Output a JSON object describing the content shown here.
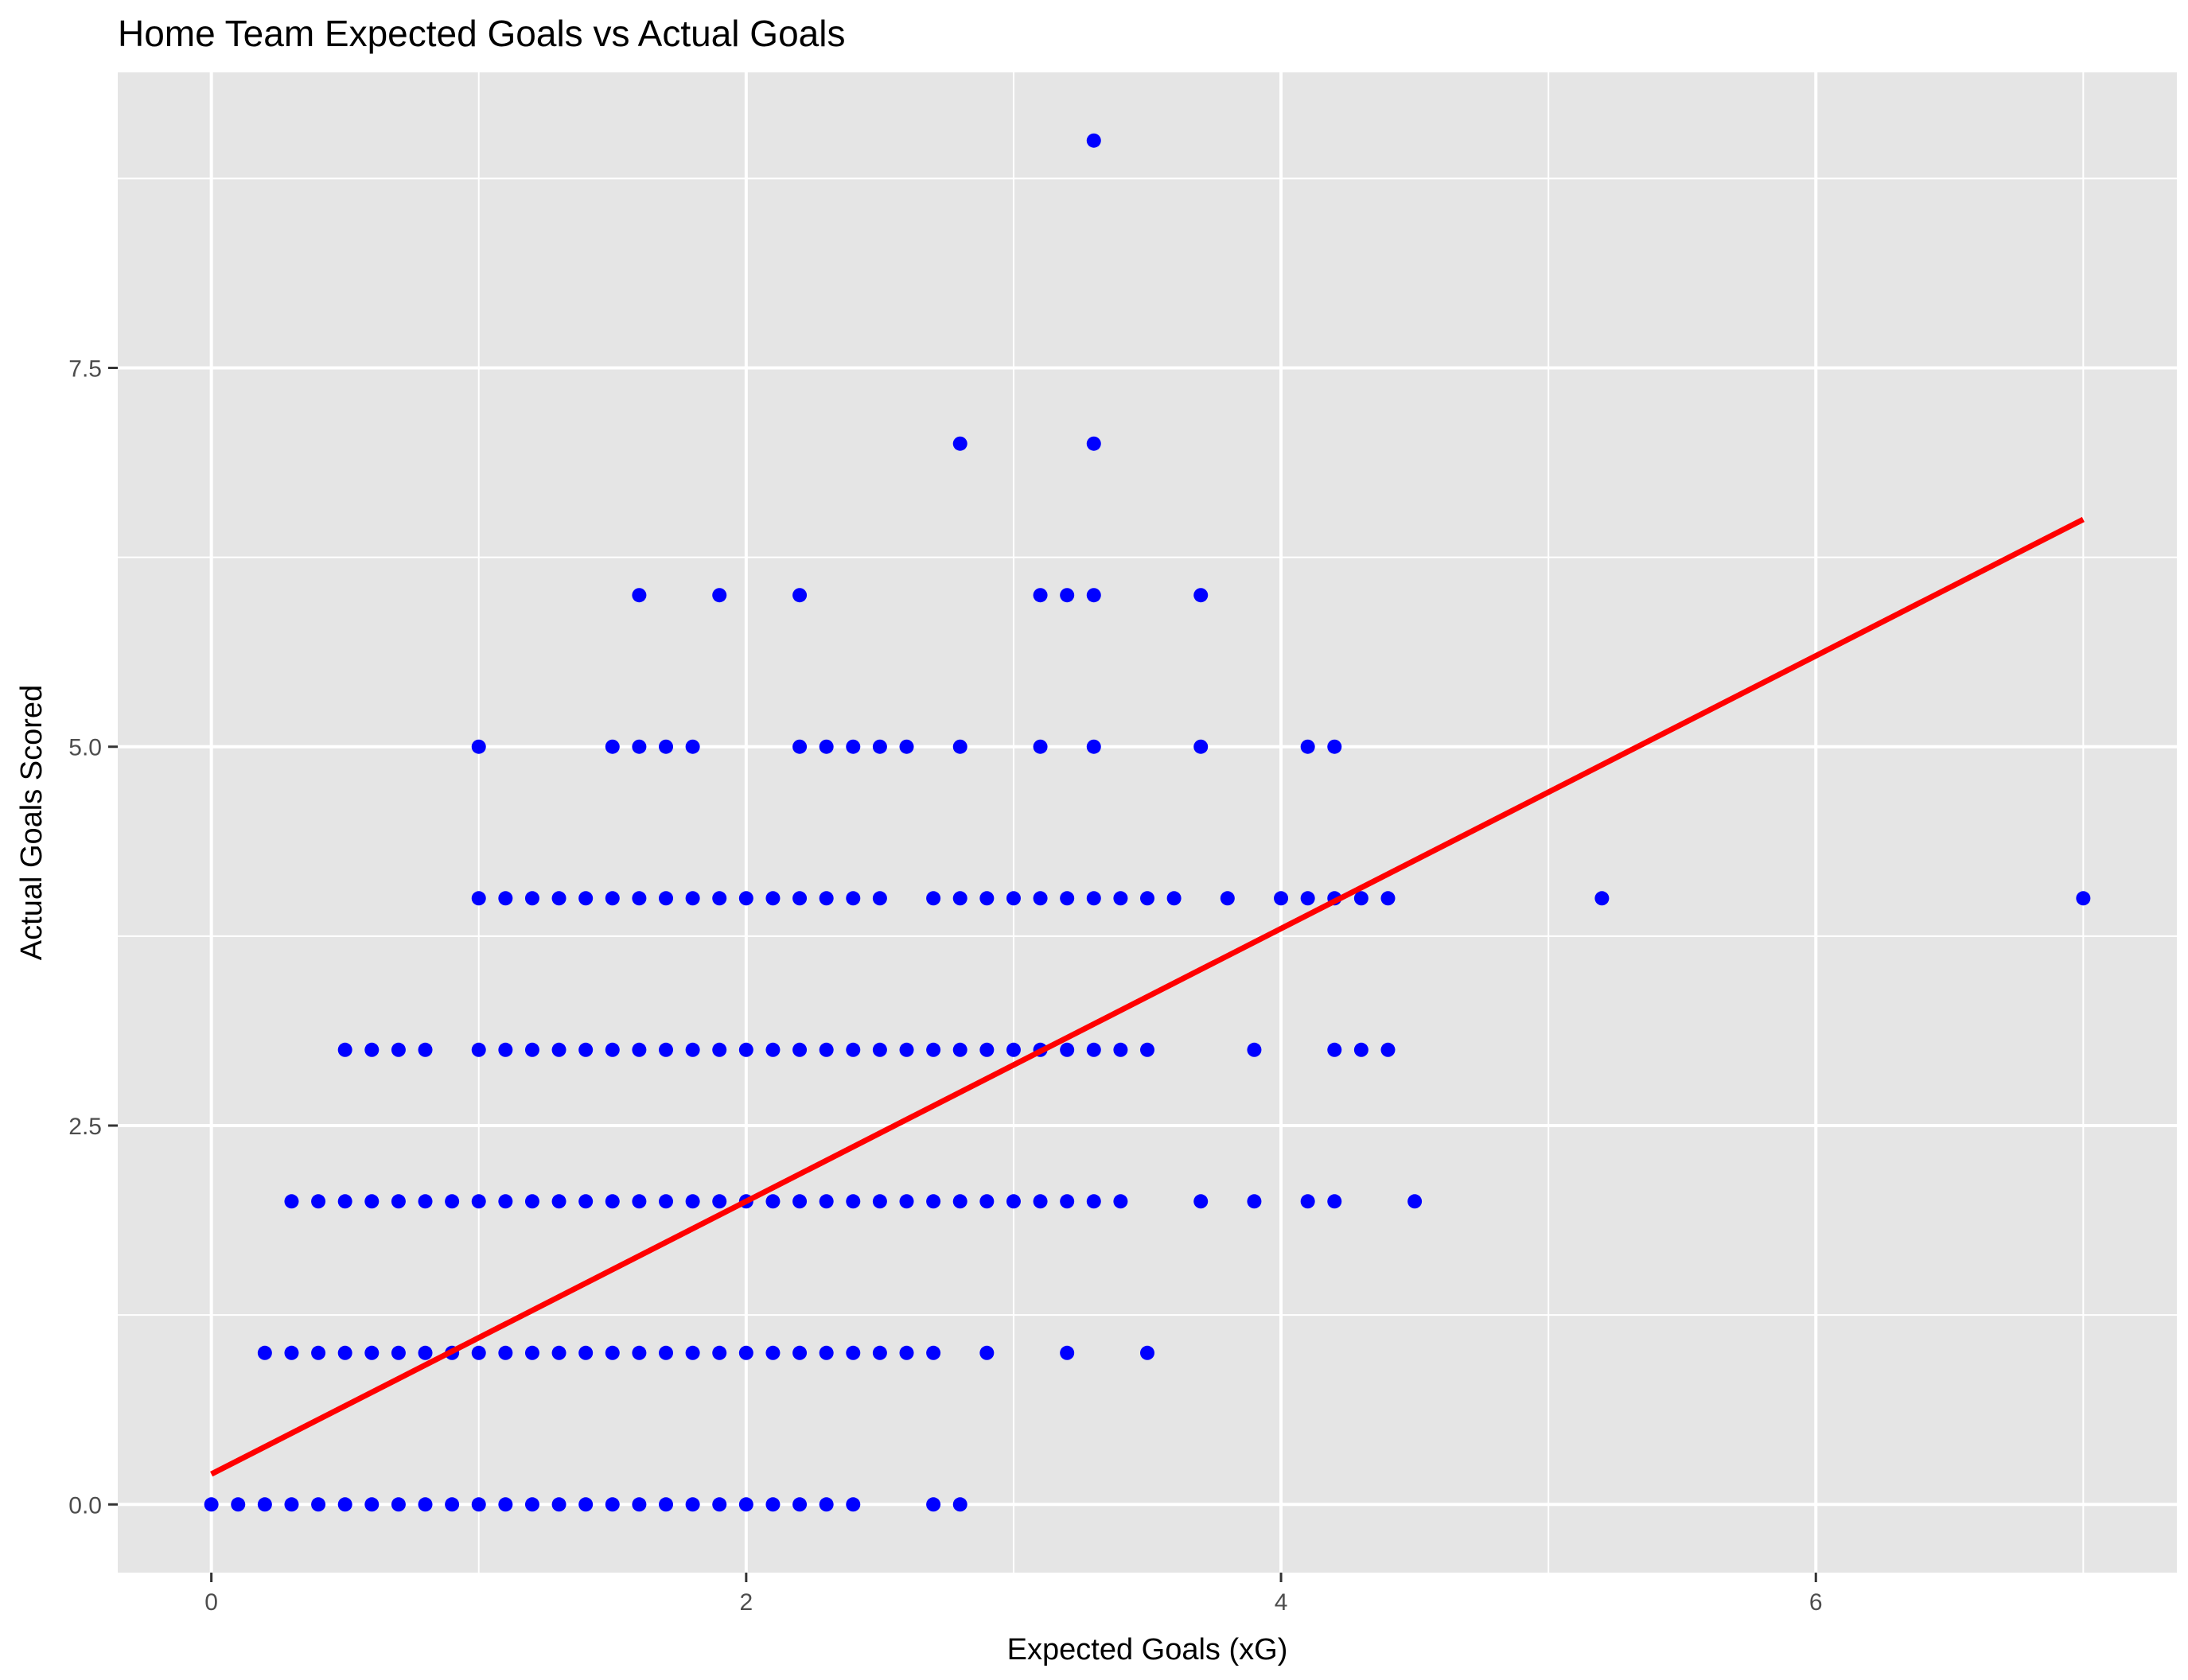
{
  "chart_data": {
    "type": "scatter",
    "title": "Home Team Expected Goals vs Actual Goals",
    "xlabel": "Expected Goals (xG)",
    "ylabel": "Actual Goals Scored",
    "xlim": [
      -0.35,
      7.35
    ],
    "ylim": [
      -0.45,
      9.45
    ],
    "x_ticks": [
      0,
      2,
      4,
      6
    ],
    "x_tick_labels": [
      "0",
      "2",
      "4",
      "6"
    ],
    "x_minor_ticks": [
      1,
      3,
      5,
      7
    ],
    "y_ticks": [
      0,
      2.5,
      5,
      7.5
    ],
    "y_tick_labels": [
      "0.0",
      "2.5",
      "5.0",
      "7.5"
    ],
    "y_minor_ticks": [
      1.25,
      3.75,
      6.25,
      8.75
    ],
    "grid": true,
    "colors": {
      "panel_background": "#e5e5e5",
      "grid_line": "#ffffff",
      "points": "#0000ff",
      "trend_line": "#ff0000"
    },
    "trend_line": {
      "x": [
        0,
        7
      ],
      "y": [
        0.2,
        6.5
      ]
    },
    "rows": [
      {
        "y": 0,
        "x": [
          0,
          0.1,
          0.2,
          0.3,
          0.4,
          0.5,
          0.6,
          0.7,
          0.8,
          0.9,
          1.0,
          1.1,
          1.2,
          1.3,
          1.4,
          1.5,
          1.6,
          1.7,
          1.8,
          1.9,
          2.0,
          2.1,
          2.2,
          2.3,
          2.4,
          2.7,
          2.8
        ]
      },
      {
        "y": 1,
        "x": [
          0.2,
          0.3,
          0.4,
          0.5,
          0.6,
          0.7,
          0.8,
          0.9,
          1.0,
          1.1,
          1.2,
          1.3,
          1.4,
          1.5,
          1.6,
          1.7,
          1.8,
          1.9,
          2.0,
          2.1,
          2.2,
          2.3,
          2.4,
          2.5,
          2.6,
          2.7,
          2.9,
          3.2,
          3.5
        ]
      },
      {
        "y": 2,
        "x": [
          0.3,
          0.4,
          0.5,
          0.6,
          0.7,
          0.8,
          0.9,
          1.0,
          1.1,
          1.2,
          1.3,
          1.4,
          1.5,
          1.6,
          1.7,
          1.8,
          1.9,
          2.0,
          2.1,
          2.2,
          2.3,
          2.4,
          2.5,
          2.6,
          2.7,
          2.8,
          2.9,
          3.0,
          3.1,
          3.2,
          3.3,
          3.4,
          3.7,
          3.9,
          4.1,
          4.2,
          4.5
        ]
      },
      {
        "y": 3,
        "x": [
          0.5,
          0.6,
          0.7,
          0.8,
          1.0,
          1.1,
          1.2,
          1.3,
          1.4,
          1.5,
          1.6,
          1.7,
          1.8,
          1.9,
          2.0,
          2.1,
          2.2,
          2.3,
          2.4,
          2.5,
          2.6,
          2.7,
          2.8,
          2.9,
          3.0,
          3.1,
          3.2,
          3.3,
          3.4,
          3.5,
          3.9,
          4.2,
          4.3,
          4.4
        ]
      },
      {
        "y": 4,
        "x": [
          1.0,
          1.1,
          1.2,
          1.3,
          1.4,
          1.5,
          1.6,
          1.7,
          1.8,
          1.9,
          2.0,
          2.1,
          2.2,
          2.3,
          2.4,
          2.5,
          2.7,
          2.8,
          2.9,
          3.0,
          3.1,
          3.2,
          3.3,
          3.4,
          3.5,
          3.6,
          3.8,
          4.0,
          4.1,
          4.2,
          4.3,
          4.4,
          5.2,
          7.0
        ]
      },
      {
        "y": 5,
        "x": [
          1.0,
          1.5,
          1.6,
          1.7,
          1.8,
          2.2,
          2.3,
          2.4,
          2.5,
          2.6,
          2.8,
          3.1,
          3.3,
          3.7,
          4.1,
          4.2
        ]
      },
      {
        "y": 6,
        "x": [
          1.6,
          1.9,
          2.2,
          3.1,
          3.2,
          3.3,
          3.7
        ]
      },
      {
        "y": 7,
        "x": [
          2.8,
          3.3
        ]
      },
      {
        "y": 9,
        "x": [
          3.3
        ]
      }
    ]
  }
}
